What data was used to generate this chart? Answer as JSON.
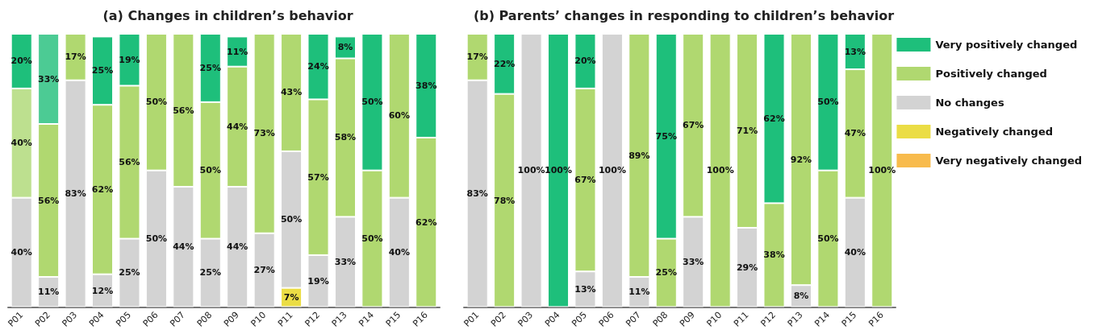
{
  "chart_data": [
    {
      "type": "bar",
      "title": "(a) Changes in children’s behavior",
      "stacked": true,
      "ylim": [
        0,
        100
      ],
      "tick_labels": "x",
      "grid": false,
      "categories": [
        "P01",
        "P02",
        "P03",
        "P04",
        "P05",
        "P06",
        "P07",
        "P08",
        "P09",
        "P10",
        "P11",
        "P12",
        "P13",
        "P14",
        "P15",
        "P16"
      ],
      "series": [
        {
          "color": "#f8bb4c",
          "values": [
            null,
            null,
            null,
            null,
            null,
            null,
            null,
            null,
            null,
            null,
            null,
            null,
            null,
            null,
            null,
            null
          ],
          "value_labels": [
            null,
            null,
            null,
            null,
            null,
            null,
            null,
            null,
            null,
            null,
            null,
            null,
            null,
            null,
            null,
            null
          ]
        },
        {
          "color": "#ebdd45",
          "values": [
            null,
            null,
            null,
            null,
            null,
            null,
            null,
            null,
            null,
            null,
            7,
            null,
            null,
            null,
            null,
            null
          ],
          "value_labels": [
            null,
            null,
            null,
            null,
            null,
            null,
            null,
            null,
            null,
            null,
            "7%",
            null,
            null,
            null,
            null,
            null
          ]
        },
        {
          "color": "#d3d3d3",
          "values": [
            40,
            11,
            83,
            12,
            25,
            50,
            44,
            25,
            44,
            27,
            50,
            19,
            33,
            null,
            40,
            null
          ],
          "value_labels": [
            "40%",
            "11%",
            "83%",
            "12%",
            "25%",
            "50%",
            "44%",
            "25%",
            "44%",
            "27%",
            "50%",
            "19%",
            "33%",
            null,
            "40%",
            null
          ]
        },
        {
          "color": "#b0d870",
          "colors": [
            "#bde08f",
            "#b0d870",
            "#b0d870",
            "#b0d870",
            "#b0d870",
            "#b0d870",
            "#b0d870",
            "#b0d870",
            "#b0d870",
            "#b0d870",
            "#b0d870",
            "#b0d870",
            "#b0d870",
            "#b0d870",
            "#b0d870",
            "#b0d870"
          ],
          "values": [
            40,
            56,
            17,
            62,
            56,
            50,
            56,
            50,
            44,
            73,
            43,
            57,
            58,
            50,
            60,
            62
          ],
          "value_labels": [
            "40%",
            "56%",
            "17%",
            "62%",
            "56%",
            "50%",
            "56%",
            "50%",
            "44%",
            "73%",
            "43%",
            "57%",
            "58%",
            "50%",
            "60%",
            "62%"
          ]
        },
        {
          "color": "#1ebf7b",
          "colors": [
            "#1ebf7b",
            "#4ccb94",
            "#1ebf7b",
            "#1ebf7b",
            "#1ebf7b",
            "#1ebf7b",
            "#1ebf7b",
            "#1ebf7b",
            "#1ebf7b",
            "#1ebf7b",
            "#1ebf7b",
            "#1ebf7b",
            "#1ebf7b",
            "#1ebf7b",
            "#1ebf7b",
            "#1ebf7b"
          ],
          "values": [
            20,
            33,
            null,
            25,
            19,
            null,
            null,
            25,
            11,
            null,
            null,
            24,
            8,
            50,
            null,
            38
          ],
          "value_labels": [
            "20%",
            "33%",
            null,
            "25%",
            "19%",
            null,
            null,
            "25%",
            "11%",
            null,
            null,
            "24%",
            "8%",
            "50%",
            null,
            "38%"
          ]
        }
      ]
    },
    {
      "type": "bar",
      "title": "(b) Parents’ changes in responding to children’s behavior",
      "stacked": true,
      "ylim": [
        0,
        100
      ],
      "tick_labels": "x",
      "legend": "right",
      "grid": false,
      "categories": [
        "P01",
        "P02",
        "P03",
        "P04",
        "P05",
        "P06",
        "P07",
        "P08",
        "P09",
        "P10",
        "P11",
        "P12",
        "P13",
        "P14",
        "P15",
        "P16"
      ],
      "series": [
        {
          "name": "Very negatively changed",
          "color": "#f8bb4c",
          "values": [
            null,
            null,
            null,
            null,
            null,
            null,
            null,
            null,
            null,
            null,
            null,
            null,
            null,
            null,
            null,
            null
          ],
          "value_labels": [
            null,
            null,
            null,
            null,
            null,
            null,
            null,
            null,
            null,
            null,
            null,
            null,
            null,
            null,
            null,
            null
          ]
        },
        {
          "name": "Negatively changed",
          "color": "#ebdd45",
          "values": [
            null,
            null,
            null,
            null,
            null,
            null,
            null,
            null,
            null,
            null,
            null,
            null,
            null,
            null,
            null,
            null
          ],
          "value_labels": [
            null,
            null,
            null,
            null,
            null,
            null,
            null,
            null,
            null,
            null,
            null,
            null,
            null,
            null,
            null,
            null
          ]
        },
        {
          "name": "No changes",
          "color": "#d3d3d3",
          "values": [
            83,
            null,
            100,
            null,
            13,
            100,
            11,
            null,
            33,
            null,
            29,
            null,
            8,
            null,
            40,
            null
          ],
          "value_labels": [
            "83%",
            null,
            "100%",
            null,
            "13%",
            "100%",
            "11%",
            null,
            "33%",
            null,
            "29%",
            null,
            "8%",
            null,
            "40%",
            null
          ]
        },
        {
          "name": "Positively changed",
          "color": "#b0d870",
          "values": [
            17,
            78,
            null,
            null,
            67,
            null,
            89,
            25,
            67,
            100,
            71,
            38,
            92,
            50,
            47,
            100
          ],
          "value_labels": [
            "17%",
            "78%",
            null,
            null,
            "67%",
            null,
            "89%",
            "25%",
            "67%",
            "100%",
            "71%",
            "38%",
            "92%",
            "50%",
            "47%",
            "100%"
          ]
        },
        {
          "name": "Very positively changed",
          "color": "#1ebf7b",
          "values": [
            null,
            22,
            null,
            100,
            20,
            null,
            null,
            75,
            null,
            null,
            null,
            62,
            null,
            50,
            13,
            null
          ],
          "value_labels": [
            null,
            "22%",
            null,
            "100%",
            "20%",
            null,
            null,
            "75%",
            null,
            null,
            null,
            "62%",
            null,
            "50%",
            "13%",
            null
          ]
        }
      ]
    }
  ]
}
